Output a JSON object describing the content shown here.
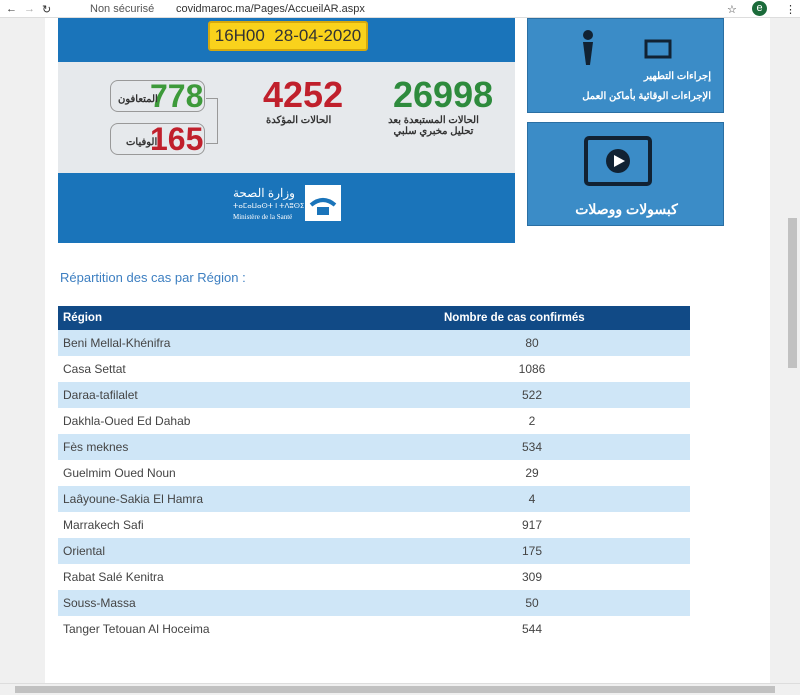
{
  "browser": {
    "security": "Non sécurisé",
    "url": "covidmaroc.ma/Pages/AccueilAR.aspx",
    "profile": "e"
  },
  "banner": {
    "time": "16H00",
    "date": "28-04-2020",
    "recovered": {
      "value": "778",
      "label": "المتعافون"
    },
    "deaths": {
      "value": "165",
      "label": "الوفيات"
    },
    "confirmed": {
      "value": "4252",
      "label": "الحالات المؤكدة"
    },
    "excluded": {
      "value": "26998",
      "label": "الحالات المستبعدة بعد تحليل مخبري سلبي"
    },
    "ministry_ar": "وزارة الصحة",
    "ministry_tifinagh": "ⵜⴰⵎⴰⵡⴰⵙⵜ ⵏ ⵜⴷⵓⵙⵉ",
    "ministry_fr": "Ministère de la Santé"
  },
  "cards": [
    {
      "items": [
        "إجراءات التطهير",
        "الإجراءات الوقائية بأماكن العمل"
      ]
    },
    {
      "title": "كبسولات ووصلات"
    }
  ],
  "section_title": "Répartition des cas par Région :",
  "table": {
    "headers": [
      "Région",
      "Nombre de cas confirmés"
    ],
    "rows": [
      [
        "Beni Mellal-Khénifra",
        "80"
      ],
      [
        "Casa Settat",
        "1086"
      ],
      [
        "Daraa-tafilalet",
        "522"
      ],
      [
        "Dakhla-Oued Ed Dahab",
        "2"
      ],
      [
        "Fès meknes",
        "534"
      ],
      [
        "Guelmim Oued Noun",
        "29"
      ],
      [
        "Laâyoune-Sakia El Hamra",
        "4"
      ],
      [
        "Marrakech Safi",
        "917"
      ],
      [
        "Oriental",
        "175"
      ],
      [
        "Rabat Salé Kenitra",
        "309"
      ],
      [
        "Souss-Massa",
        "50"
      ],
      [
        "Tanger Tetouan Al Hoceima",
        "544"
      ]
    ]
  }
}
